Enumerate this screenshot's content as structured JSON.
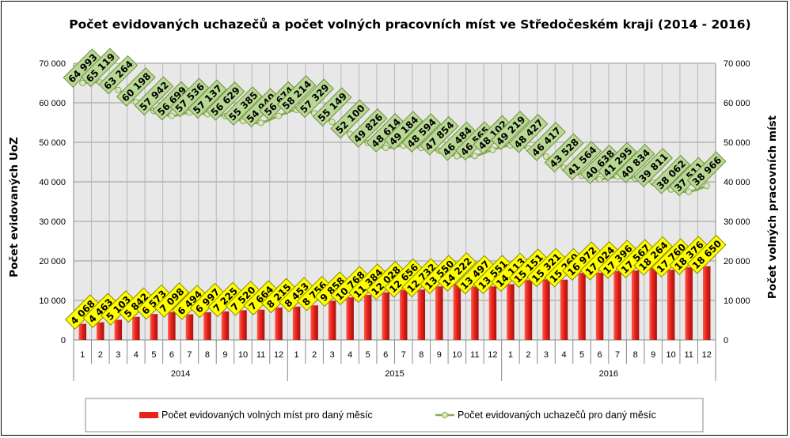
{
  "chart_data": {
    "type": "bar+line",
    "title": "Počet evidovaných uchazečů a počet volných pracovních míst ve Středočeském kraji (2014 - 2016)",
    "ylabel_left": "Počet evidovaných UoZ",
    "ylabel_right": "Počet volných pracovních míst",
    "ylim": [
      0,
      70000
    ],
    "yticks": [
      "0",
      "10 000",
      "20 000",
      "30 000",
      "40 000",
      "50 000",
      "60 000",
      "70 000"
    ],
    "ytick_values": [
      0,
      10000,
      20000,
      30000,
      40000,
      50000,
      60000,
      70000
    ],
    "months": [
      "1",
      "2",
      "3",
      "4",
      "5",
      "6",
      "7",
      "8",
      "9",
      "10",
      "11",
      "12",
      "1",
      "2",
      "3",
      "4",
      "5",
      "6",
      "7",
      "8",
      "9",
      "10",
      "11",
      "12",
      "1",
      "2",
      "3",
      "4",
      "5",
      "6",
      "7",
      "8",
      "9",
      "10",
      "11",
      "12"
    ],
    "years": [
      "2014",
      "2015",
      "2016"
    ],
    "grid": true,
    "legend_position": "bottom",
    "colors": {
      "bar": "#e8231c",
      "line": "#8cab54",
      "bar_label_bg": "#ffff00",
      "line_label_bg": "#b9d795",
      "plot_bg": "#e8e8e8"
    },
    "series": [
      {
        "name": "Počet evidovaných volných míst pro daný měsíc",
        "kind": "bar",
        "values": [
          4068,
          4463,
          5103,
          5842,
          6573,
          7098,
          6494,
          6997,
          7225,
          7520,
          7664,
          8215,
          8453,
          8756,
          9858,
          10768,
          11384,
          12028,
          12656,
          12732,
          13550,
          14222,
          13497,
          13551,
          14113,
          15151,
          15321,
          15260,
          16972,
          17024,
          17396,
          17567,
          18264,
          17760,
          18376,
          18650
        ],
        "labels": [
          "4 068",
          "4 463",
          "5 103",
          "5 842",
          "6 573",
          "7 098",
          "6 494",
          "6 997",
          "7 225",
          "7 520",
          "7 664",
          "8 215",
          "8 453",
          "8 756",
          "9 858",
          "10 768",
          "11 384",
          "12 028",
          "12 656",
          "12 732",
          "13 550",
          "14 222",
          "13 497",
          "13 551",
          "14 113",
          "15 151",
          "15 321",
          "15 260",
          "16 972",
          "17 024",
          "17 396",
          "17 567",
          "18 264",
          "17 760",
          "18 376",
          "18 650"
        ]
      },
      {
        "name": "Počet evidovaných uchazečů pro daný měsíc",
        "kind": "line",
        "values": [
          64993,
          65119,
          63264,
          60198,
          57942,
          56699,
          57536,
          57137,
          56629,
          55385,
          54940,
          56674,
          58214,
          57329,
          55149,
          52100,
          49826,
          48614,
          49184,
          48594,
          47854,
          46484,
          46565,
          48102,
          49219,
          48427,
          46417,
          43528,
          41564,
          40638,
          41295,
          40834,
          39811,
          38062,
          37511,
          38966
        ],
        "labels": [
          "64 993",
          "65 119",
          "63 264",
          "60 198",
          "57 942",
          "56 699",
          "57 536",
          "57 137",
          "56 629",
          "55 385",
          "54 940",
          "56 674",
          "58 214",
          "57 329",
          "55 149",
          "52 100",
          "49 826",
          "48 614",
          "49 184",
          "48 594",
          "47 854",
          "46 484",
          "46 565",
          "48 102",
          "49 219",
          "48 427",
          "46 417",
          "43 528",
          "41 564",
          "40 638",
          "41 295",
          "40 834",
          "39 811",
          "38 062",
          "37 511",
          "38 966"
        ]
      }
    ]
  }
}
